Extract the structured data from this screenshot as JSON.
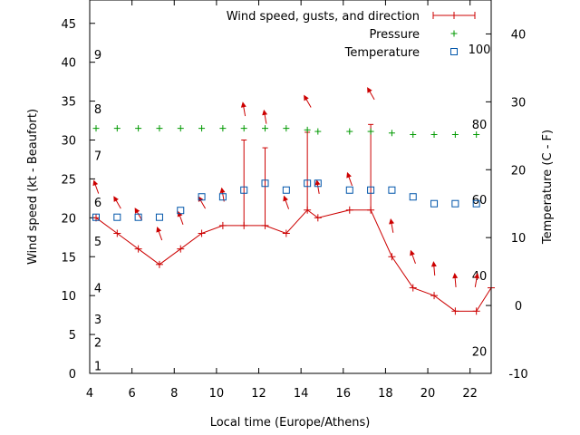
{
  "chart_data": {
    "type": "line",
    "xlabel": "Local time (Europe/Athens)",
    "ylabel": "Wind speed (kt - Beaufort)",
    "y2label": "Temperature (C - F)",
    "xlim": [
      4,
      23
    ],
    "ylim": [
      0,
      48
    ],
    "y2lim": [
      -10,
      45
    ],
    "x_ticks": [
      4,
      6,
      8,
      10,
      12,
      14,
      16,
      18,
      20,
      22
    ],
    "y_ticks": [
      0,
      5,
      10,
      15,
      20,
      25,
      30,
      35,
      40,
      45
    ],
    "y2_ticks": [
      -10,
      0,
      10,
      20,
      30,
      40
    ],
    "beaufort_labels": [
      {
        "label": "1",
        "kt": 1
      },
      {
        "label": "2",
        "kt": 4
      },
      {
        "label": "3",
        "kt": 7
      },
      {
        "label": "4",
        "kt": 11
      },
      {
        "label": "5",
        "kt": 17
      },
      {
        "label": "6",
        "kt": 22
      },
      {
        "label": "7",
        "kt": 28
      },
      {
        "label": "8",
        "kt": 34
      },
      {
        "label": "9",
        "kt": 41
      }
    ],
    "fahrenheit_labels": [
      {
        "label": "20",
        "tempC": -6.7
      },
      {
        "label": "40",
        "tempC": 4.4
      },
      {
        "label": "60",
        "tempC": 15.6
      },
      {
        "label": "80",
        "tempC": 26.7
      },
      {
        "label": "100",
        "tempC": 37.8
      }
    ],
    "legend": [
      {
        "label": "Wind speed, gusts, and direction",
        "color": "#cc0000",
        "marker": "errorbar"
      },
      {
        "label": "Pressure",
        "color": "#009900",
        "marker": "plus"
      },
      {
        "label": "Temperature",
        "color": "#0055aa",
        "marker": "square"
      }
    ],
    "series": [
      {
        "name": "Wind speed, gusts, and direction",
        "color": "#cc0000",
        "points": [
          {
            "x": 4.3,
            "y": 20,
            "gust": 20
          },
          {
            "x": 5.3,
            "y": 18,
            "gust": 18
          },
          {
            "x": 6.3,
            "y": 16,
            "gust": 16
          },
          {
            "x": 7.3,
            "y": 14,
            "gust": 14
          },
          {
            "x": 8.3,
            "y": 16,
            "gust": 16
          },
          {
            "x": 9.3,
            "y": 18,
            "gust": 18
          },
          {
            "x": 10.3,
            "y": 19,
            "gust": 19
          },
          {
            "x": 11.3,
            "y": 19,
            "gust": 30
          },
          {
            "x": 12.3,
            "y": 19,
            "gust": 29
          },
          {
            "x": 13.3,
            "y": 18,
            "gust": 18
          },
          {
            "x": 14.3,
            "y": 21,
            "gust": 31
          },
          {
            "x": 14.8,
            "y": 20,
            "gust": 20
          },
          {
            "x": 16.3,
            "y": 21,
            "gust": 21
          },
          {
            "x": 17.3,
            "y": 21,
            "gust": 32
          },
          {
            "x": 18.3,
            "y": 15,
            "gust": 15
          },
          {
            "x": 19.3,
            "y": 11,
            "gust": 11
          },
          {
            "x": 20.3,
            "y": 10,
            "gust": 10
          },
          {
            "x": 21.3,
            "y": 8,
            "gust": 8
          },
          {
            "x": 22.3,
            "y": 8,
            "gust": 8
          },
          {
            "x": 23.0,
            "y": 11,
            "gust": 11
          }
        ]
      },
      {
        "name": "Wind direction arrows",
        "color": "#cc0000",
        "points": [
          {
            "x": 4.3,
            "y": 24,
            "dir": 340
          },
          {
            "x": 5.3,
            "y": 22,
            "dir": 330
          },
          {
            "x": 6.3,
            "y": 20.5,
            "dir": 330
          },
          {
            "x": 7.3,
            "y": 18,
            "dir": 340
          },
          {
            "x": 8.3,
            "y": 20,
            "dir": 340
          },
          {
            "x": 9.3,
            "y": 22,
            "dir": 330
          },
          {
            "x": 10.3,
            "y": 23,
            "dir": 350
          },
          {
            "x": 11.3,
            "y": 34,
            "dir": 350
          },
          {
            "x": 12.3,
            "y": 33,
            "dir": 350
          },
          {
            "x": 13.3,
            "y": 22,
            "dir": 340
          },
          {
            "x": 14.3,
            "y": 35,
            "dir": 330
          },
          {
            "x": 14.8,
            "y": 24,
            "dir": 350
          },
          {
            "x": 16.3,
            "y": 25,
            "dir": 340
          },
          {
            "x": 17.3,
            "y": 36,
            "dir": 330
          },
          {
            "x": 18.3,
            "y": 19,
            "dir": 350
          },
          {
            "x": 19.3,
            "y": 15,
            "dir": 340
          },
          {
            "x": 20.3,
            "y": 13.5,
            "dir": 355
          },
          {
            "x": 21.3,
            "y": 12,
            "dir": 355
          },
          {
            "x": 22.3,
            "y": 12,
            "dir": 10
          }
        ]
      },
      {
        "name": "Pressure",
        "color": "#009900",
        "points": [
          {
            "x": 4.3,
            "y": 31.5
          },
          {
            "x": 5.3,
            "y": 31.5
          },
          {
            "x": 6.3,
            "y": 31.5
          },
          {
            "x": 7.3,
            "y": 31.5
          },
          {
            "x": 8.3,
            "y": 31.5
          },
          {
            "x": 9.3,
            "y": 31.5
          },
          {
            "x": 10.3,
            "y": 31.5
          },
          {
            "x": 11.3,
            "y": 31.5
          },
          {
            "x": 12.3,
            "y": 31.5
          },
          {
            "x": 13.3,
            "y": 31.5
          },
          {
            "x": 14.3,
            "y": 31.3
          },
          {
            "x": 14.8,
            "y": 31.1
          },
          {
            "x": 16.3,
            "y": 31.1
          },
          {
            "x": 17.3,
            "y": 31.1
          },
          {
            "x": 18.3,
            "y": 30.9
          },
          {
            "x": 19.3,
            "y": 30.7
          },
          {
            "x": 20.3,
            "y": 30.7
          },
          {
            "x": 21.3,
            "y": 30.7
          },
          {
            "x": 22.3,
            "y": 30.7
          }
        ]
      },
      {
        "name": "Temperature",
        "color": "#0055aa",
        "axis": "y2",
        "points": [
          {
            "x": 4.3,
            "y": 13
          },
          {
            "x": 5.3,
            "y": 13
          },
          {
            "x": 6.3,
            "y": 13
          },
          {
            "x": 7.3,
            "y": 13
          },
          {
            "x": 8.3,
            "y": 14
          },
          {
            "x": 9.3,
            "y": 16
          },
          {
            "x": 10.3,
            "y": 16
          },
          {
            "x": 11.3,
            "y": 17
          },
          {
            "x": 12.3,
            "y": 18
          },
          {
            "x": 13.3,
            "y": 17
          },
          {
            "x": 14.3,
            "y": 18
          },
          {
            "x": 14.8,
            "y": 18
          },
          {
            "x": 16.3,
            "y": 17
          },
          {
            "x": 17.3,
            "y": 17
          },
          {
            "x": 18.3,
            "y": 17
          },
          {
            "x": 19.3,
            "y": 16
          },
          {
            "x": 20.3,
            "y": 15
          },
          {
            "x": 21.3,
            "y": 15
          },
          {
            "x": 22.3,
            "y": 15
          }
        ]
      }
    ]
  }
}
